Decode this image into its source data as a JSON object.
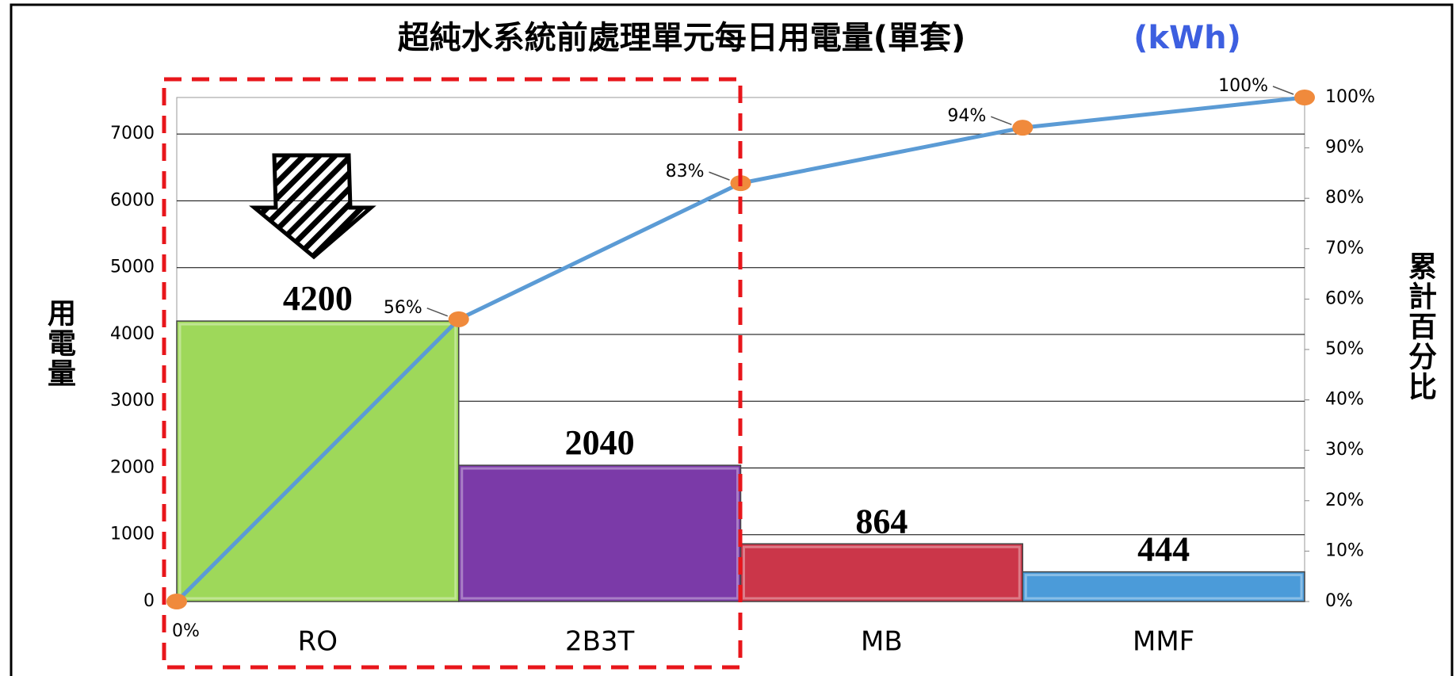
{
  "chart_data": {
    "type": "pareto",
    "title": "超純水系統前處理單元每日用電量(單套)",
    "unit": "(kWh)",
    "y_label": "用電量",
    "y2_label": "累計百分比",
    "categories": [
      "RO",
      "2B3T",
      "MB",
      "MMF"
    ],
    "values": [
      4200,
      2040,
      864,
      444
    ],
    "colors": [
      "#9ed85a",
      "#7b3aa8",
      "#cb3649",
      "#4b9bd9"
    ],
    "cumulative": {
      "values": [
        0,
        56,
        83,
        94,
        100
      ],
      "value_labels": [
        "0%",
        "56%",
        "83%",
        "94%",
        "100%"
      ],
      "color": "#5b9bd5",
      "marker_color": "#f08a3c",
      "axis": "y2"
    },
    "ylim": [
      0,
      7548
    ],
    "yticks": [
      0,
      1000,
      2000,
      3000,
      4000,
      5000,
      6000,
      7000
    ],
    "y2lim": [
      0,
      100
    ],
    "y2ticks": [
      {
        "value": 0,
        "label": "0%"
      },
      {
        "value": 10,
        "label": "10%"
      },
      {
        "value": 20,
        "label": "20%"
      },
      {
        "value": 30,
        "label": "30%"
      },
      {
        "value": 40,
        "label": "40%"
      },
      {
        "value": 50,
        "label": "50%"
      },
      {
        "value": 60,
        "label": "60%"
      },
      {
        "value": 70,
        "label": "70%"
      },
      {
        "value": 80,
        "label": "80%"
      },
      {
        "value": 90,
        "label": "90%"
      },
      {
        "value": 100,
        "label": "100%"
      }
    ],
    "grid": true
  }
}
